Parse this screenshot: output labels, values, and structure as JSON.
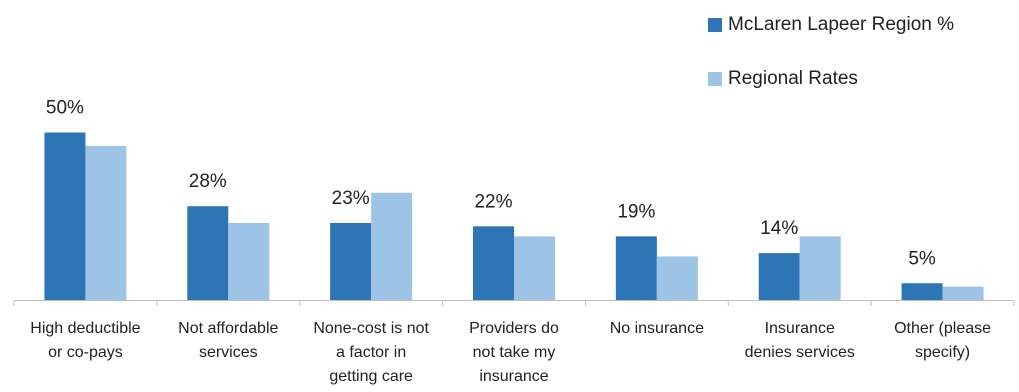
{
  "chart_data": {
    "type": "bar",
    "categories": [
      [
        "High deductible",
        "or co-pays"
      ],
      [
        "Not affordable",
        "services"
      ],
      [
        "None-cost is not",
        "a factor in",
        "getting care"
      ],
      [
        "Providers do",
        "not take my",
        "insurance"
      ],
      [
        "No insurance"
      ],
      [
        "Insurance",
        "denies services"
      ],
      [
        "Other (please",
        "specify)"
      ]
    ],
    "series": [
      {
        "name": "McLaren Lapeer Region %",
        "color": "#2e75b6",
        "values": [
          50,
          28,
          23,
          22,
          19,
          14,
          5
        ]
      },
      {
        "name": "Regional Rates",
        "color": "#9dc3e6",
        "values": [
          46,
          23,
          32,
          19,
          13,
          19,
          4
        ]
      }
    ],
    "data_labels": [
      "50%",
      "28%",
      "23%",
      "22%",
      "19%",
      "14%",
      "5%"
    ],
    "ylim": [
      0,
      60
    ],
    "grid": false,
    "legend_position": "top-right"
  }
}
